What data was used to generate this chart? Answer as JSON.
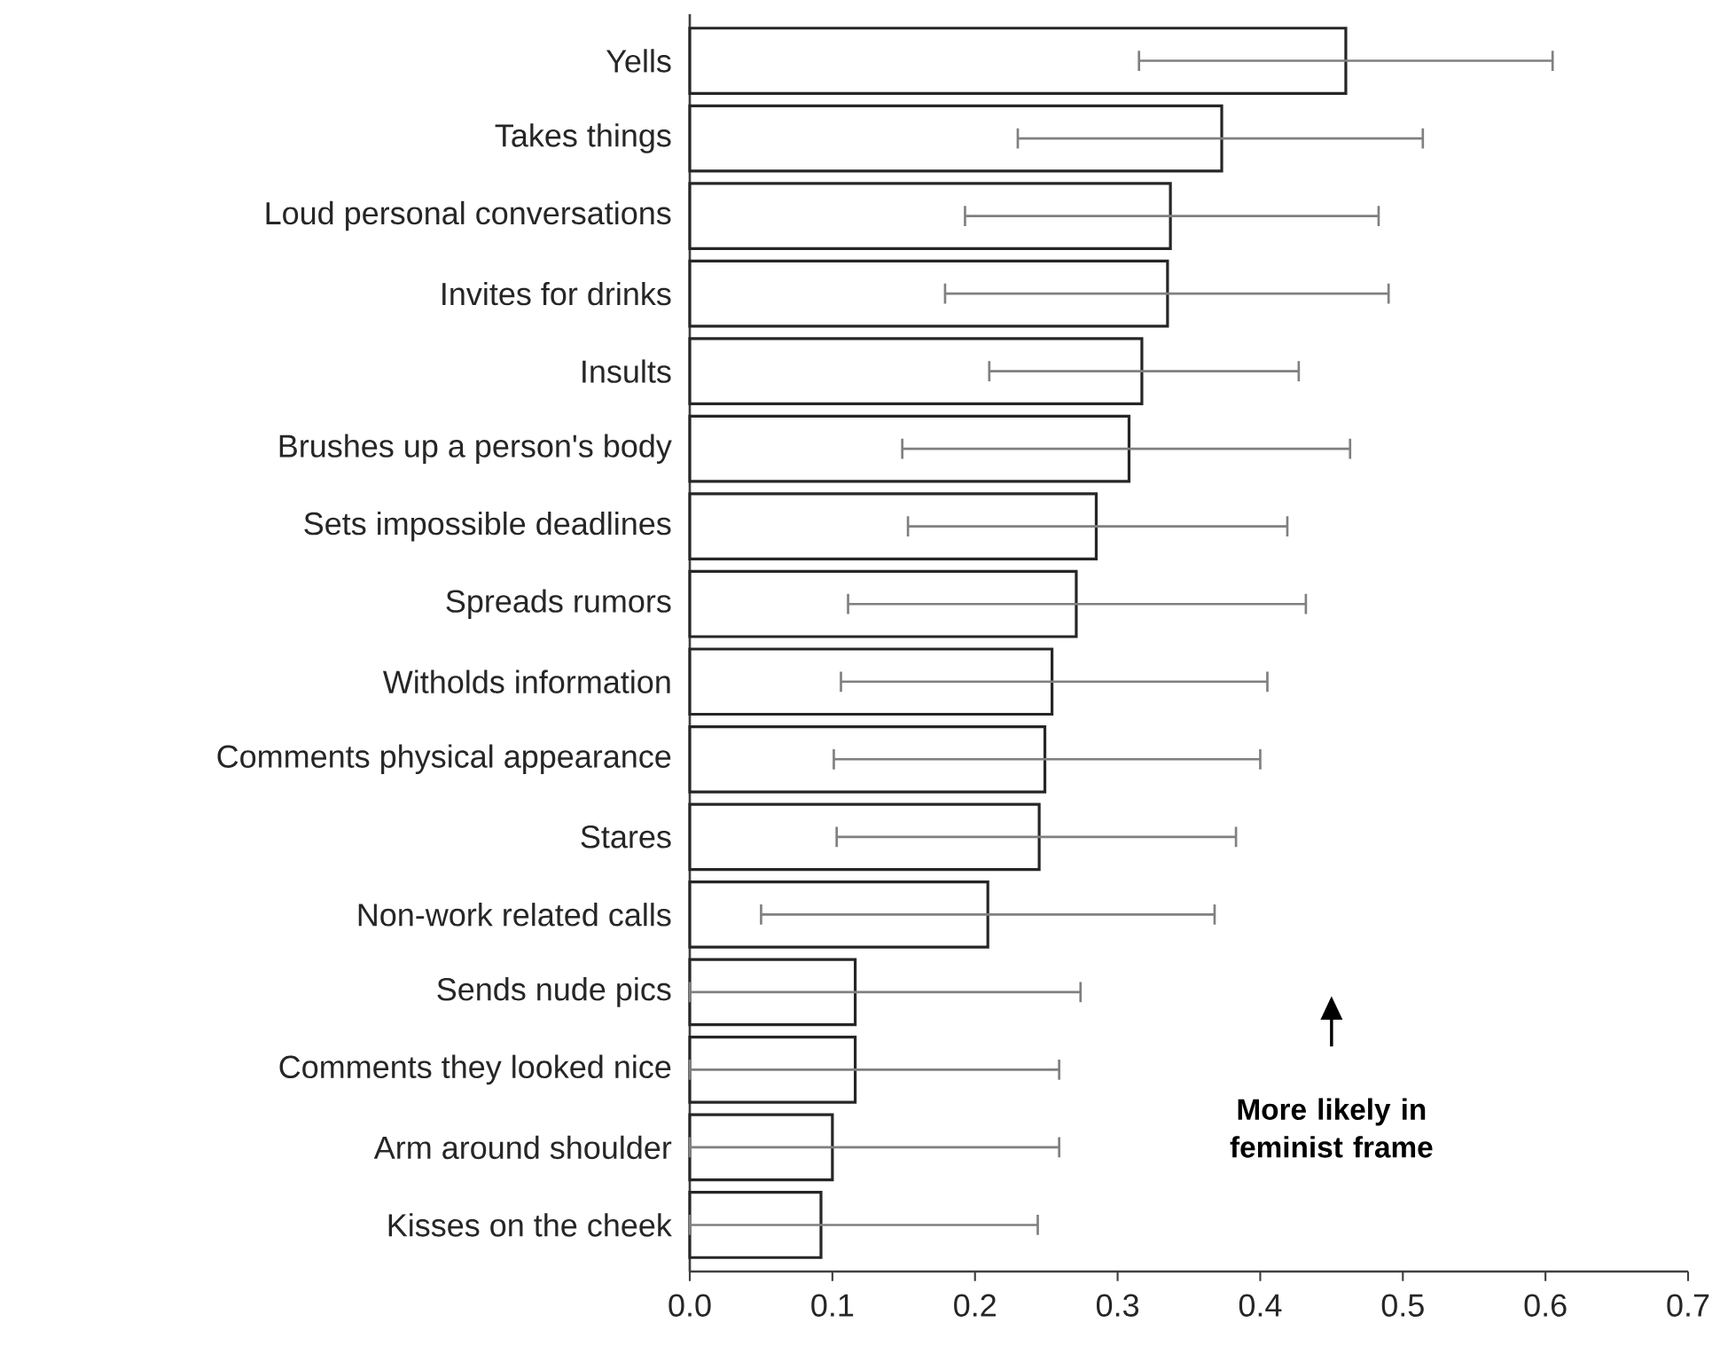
{
  "chart_data": {
    "type": "bar",
    "orientation": "horizontal",
    "categories": [
      "Yells",
      "Takes things",
      "Loud personal conversations",
      "Invites for drinks",
      "Insults",
      "Brushes up a person's body",
      "Sets impossible deadlines",
      "Spreads rumors",
      "Witholds information",
      "Comments physical appearance",
      "Stares",
      "Non-work related calls",
      "Sends nude pics",
      "Comments they looked nice",
      "Arm around shoulder",
      "Kisses on the cheek"
    ],
    "values": [
      0.46,
      0.373,
      0.337,
      0.335,
      0.317,
      0.308,
      0.285,
      0.271,
      0.254,
      0.249,
      0.245,
      0.209,
      0.116,
      0.116,
      0.1,
      0.092
    ],
    "errors": [
      [
        0.315,
        0.605
      ],
      [
        0.23,
        0.514
      ],
      [
        0.193,
        0.483
      ],
      [
        0.179,
        0.49
      ],
      [
        0.21,
        0.427
      ],
      [
        0.149,
        0.463
      ],
      [
        0.153,
        0.419
      ],
      [
        0.111,
        0.432
      ],
      [
        0.106,
        0.405
      ],
      [
        0.101,
        0.4
      ],
      [
        0.103,
        0.383
      ],
      [
        0.05,
        0.368
      ],
      [
        0,
        0.274
      ],
      [
        0,
        0.259
      ],
      [
        0,
        0.259
      ],
      [
        0,
        0.244
      ]
    ],
    "color": "#ffffff",
    "xlim": [
      0,
      0.7
    ],
    "xticks": [
      {
        "value": 0,
        "label": "0.0"
      },
      0.1,
      0.2,
      0.3,
      0.4,
      0.5,
      0.6,
      0.7
    ],
    "annotations": [
      "More likely in feminist frame"
    ]
  }
}
